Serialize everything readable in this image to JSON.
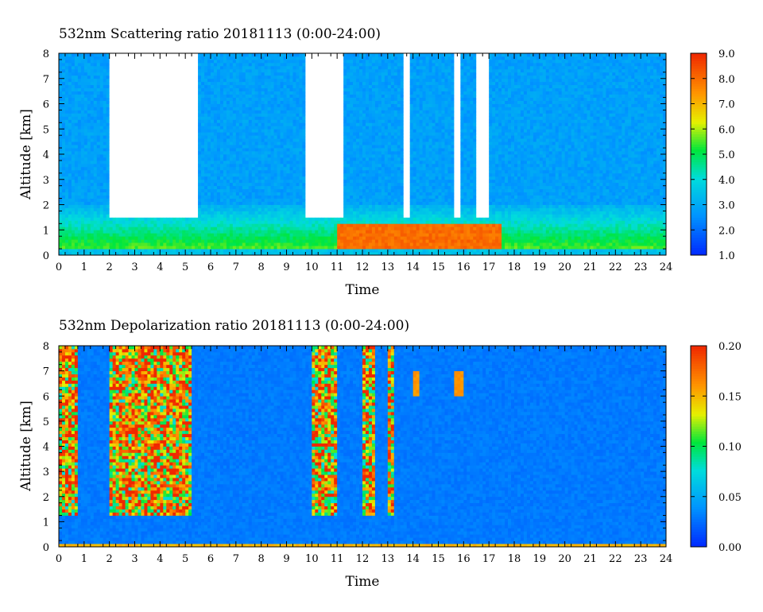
{
  "chart_data": [
    {
      "type": "heatmap",
      "title": "532nm Scattering ratio  20181113 (0:00-24:00)",
      "xlabel": "Time",
      "ylabel": "Altitude [km]",
      "xlim": [
        0,
        24
      ],
      "ylim": [
        0,
        8
      ],
      "xticks": [
        "0",
        "1",
        "2",
        "3",
        "4",
        "5",
        "6",
        "7",
        "8",
        "9",
        "10",
        "11",
        "12",
        "13",
        "14",
        "15",
        "16",
        "17",
        "18",
        "19",
        "20",
        "21",
        "22",
        "23",
        "24"
      ],
      "yticks": [
        "0",
        "1",
        "2",
        "3",
        "4",
        "5",
        "6",
        "7",
        "8"
      ],
      "colorbar": {
        "range": [
          1.0,
          9.0
        ],
        "labels": [
          "1.0",
          "2.0",
          "3.0",
          "4.0",
          "5.0",
          "6.0",
          "7.0",
          "8.0",
          "9.0"
        ]
      },
      "background_level": 2.8,
      "no_data_color": "#ffffff",
      "layers": [
        {
          "feature": "boundary layer",
          "x": [
            0,
            24
          ],
          "y": [
            0.3,
            2.0
          ],
          "value": 5.5
        },
        {
          "feature": "dense aerosol layer",
          "x": [
            11,
            17.5
          ],
          "y": [
            0.3,
            1.2
          ],
          "value": 8.0
        },
        {
          "feature": "clouds (saturated)",
          "time_ranges": [
            [
              2,
              5.5
            ],
            [
              9.8,
              11.2
            ],
            [
              13.6,
              13.9
            ],
            [
              15.6,
              15.9
            ],
            [
              16.5,
              17.0
            ]
          ]
        }
      ]
    },
    {
      "type": "heatmap",
      "title": "532nm Depolarization ratio  20181113 (0:00-24:00)",
      "xlabel": "Time",
      "ylabel": "Altitude [km]",
      "xlim": [
        0,
        24
      ],
      "ylim": [
        0,
        8
      ],
      "xticks": [
        "0",
        "1",
        "2",
        "3",
        "4",
        "5",
        "6",
        "7",
        "8",
        "9",
        "10",
        "11",
        "12",
        "13",
        "14",
        "15",
        "16",
        "17",
        "18",
        "19",
        "20",
        "21",
        "22",
        "23",
        "24"
      ],
      "yticks": [
        "0",
        "1",
        "2",
        "3",
        "4",
        "5",
        "6",
        "7",
        "8"
      ],
      "colorbar": {
        "range": [
          0.0,
          0.2
        ],
        "labels": [
          "0.00",
          "0.05",
          "0.10",
          "0.15",
          "0.20"
        ]
      },
      "background_level": 0.03,
      "layers": [
        {
          "feature": "noisy high depolarization",
          "time_ranges": [
            [
              0,
              0.8
            ],
            [
              2,
              5.2
            ],
            [
              10,
              11
            ],
            [
              12,
              12.5
            ],
            [
              13,
              13.2
            ]
          ],
          "value": 0.18
        },
        {
          "feature": "ice cloud patches",
          "time_ranges": [
            [
              14,
              14.3
            ],
            [
              15.6,
              16
            ]
          ],
          "value": 0.16
        },
        {
          "feature": "near-surface layer",
          "x": [
            0,
            24
          ],
          "y": [
            0,
            0.15
          ],
          "value": 0.15
        }
      ]
    }
  ]
}
